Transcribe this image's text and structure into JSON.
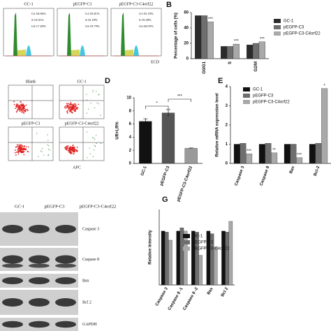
{
  "flow_cytometry": {
    "panels": [
      {
        "name": "GC-1",
        "stats": [
          "G1:54.96%",
          "S:15.01%",
          "G2:17.49%"
        ]
      },
      {
        "name": "pEGFP-C3",
        "stats": [
          "G1:55.81%",
          "S:16.18%",
          "G2:19.79%"
        ]
      },
      {
        "name": "pEGFP-C3-C4orf22",
        "stats": [
          "G1:55.18%",
          "S:19.38%",
          "G2:20.05%"
        ]
      }
    ],
    "axis_label": "ECD"
  },
  "apoptosis_plots": {
    "panels": [
      "Blank",
      "GC-1",
      "pEGFP-C3",
      "pEGFP-C3-C4orf22"
    ],
    "axis_label": "APC"
  },
  "western_blot": {
    "lanes": [
      "GC-1",
      "pEGFP-C3",
      "pEGFP-C3-C4orf22"
    ],
    "proteins": [
      "Caspase 3",
      "Caspase 8",
      "Bax",
      "Bcl 2",
      "GAPDH"
    ]
  },
  "chart_data": [
    {
      "type": "bar",
      "panel_label": "B",
      "y_label": "Percentage of cells (%)",
      "categories": [
        "G0/G1",
        "S",
        "G2/M"
      ],
      "series": [
        {
          "name": "GC-1",
          "color": "#2b2b2b",
          "values": [
            56,
            16,
            18
          ]
        },
        {
          "name": "pEGFP-C3",
          "color": "#6e6e6e",
          "values": [
            56,
            16,
            20
          ]
        },
        {
          "name": "pEGFP-C3-C4orf22",
          "color": "#a9a9a9",
          "values": [
            48,
            19,
            22
          ]
        }
      ],
      "ylim": [
        0,
        60
      ],
      "yticks": [
        0,
        20,
        40,
        60
      ],
      "annotations": [
        "***",
        "***",
        "***"
      ]
    },
    {
      "type": "bar",
      "panel_label": "D",
      "y_label": "UR+LR%",
      "categories": [
        "GC-1",
        "pEGFP-C3",
        "pEGFP-C3-C4orf22"
      ],
      "values": [
        6.4,
        7.7,
        2.3
      ],
      "errors": [
        0.4,
        0.5,
        0.05
      ],
      "colors": [
        "#111111",
        "#555555",
        "#9a9a9a"
      ],
      "ylim": [
        0,
        10
      ],
      "yticks": [
        0,
        2,
        4,
        6,
        8,
        10
      ],
      "annotations": [
        "*",
        "***"
      ]
    },
    {
      "type": "bar",
      "panel_label": "E",
      "y_label": "Relative mRNA expression level",
      "categories": [
        "Caspase 3",
        "Caspase 8",
        "Bax",
        "Bcl-2"
      ],
      "series": [
        {
          "name": "GC-1",
          "color": "#111111",
          "values": [
            1,
            1,
            1,
            1
          ]
        },
        {
          "name": "pEGFP-C3",
          "color": "#6e6e6e",
          "values": [
            1.05,
            1.05,
            1.0,
            1.05
          ]
        },
        {
          "name": "pEGFP-C3-C4orf22",
          "color": "#a9a9a9",
          "values": [
            0.5,
            0.55,
            0.3,
            3.9
          ]
        }
      ],
      "ylim": [
        0,
        4
      ],
      "yticks": [
        0,
        1,
        2,
        3,
        4
      ],
      "annotations": [
        "***",
        "**",
        "***",
        "*"
      ]
    },
    {
      "type": "bar",
      "panel_label": "G",
      "y_label": "Relative intensity",
      "categories": [
        "Caspase 3",
        "Caspase 8 -1",
        "Caspase 8 -2",
        "Bax",
        "Bcl 2"
      ],
      "series": [
        {
          "name": "GC-1",
          "color": "#111111",
          "values": [
            1,
            1,
            1,
            1,
            1
          ]
        },
        {
          "name": "pEGFP-C3",
          "color": "#6e6e6e",
          "values": [
            0.98,
            1.06,
            0.98,
            0.95,
            0.98
          ]
        },
        {
          "name": "pEGFP-C3-C4orf22",
          "color": "#a9a9a9",
          "values": [
            0.83,
            1.0,
            0.55,
            0.7,
            1.18
          ]
        }
      ],
      "ylim": [
        0,
        1.4
      ]
    }
  ]
}
